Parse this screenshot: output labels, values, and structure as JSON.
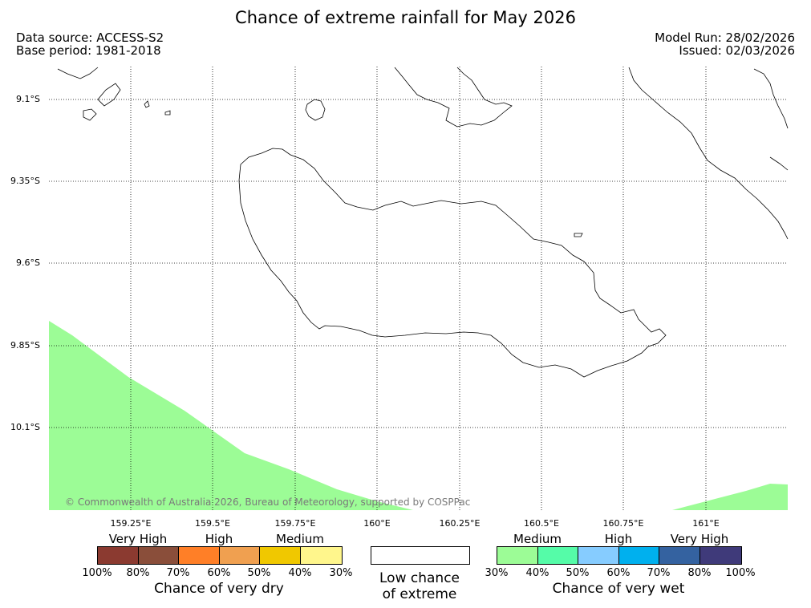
{
  "header": {
    "title": "Chance of extreme rainfall for May 2026",
    "data_source": "Data source: ACCESS-S2",
    "base_period": "Base period: 1981-2018",
    "model_run": "Model Run: 28/02/2026",
    "issued": "Issued: 02/03/2026"
  },
  "map": {
    "lat_labels": [
      "9.1°S",
      "9.35°S",
      "9.6°S",
      "9.85°S",
      "10.1°S"
    ],
    "lon_labels": [
      "159.25°E",
      "159.5°E",
      "159.75°E",
      "160°E",
      "160.25°E",
      "160.5°E",
      "160.75°E",
      "161°E"
    ],
    "copyright": "© Commonwealth of Australia 2026, Bureau of Meteorology, supported by COSPPac",
    "shaded_category": "Medium chance of very wet (30%-40%)",
    "colors": {
      "wet_medium_light": "#9cfc96",
      "coastline": "#000000",
      "grid": "#000000"
    }
  },
  "legend": {
    "dry": {
      "categories": [
        "Very High",
        "High",
        "Medium"
      ],
      "colors": [
        "#8b3a30",
        "#8a4e3a",
        "#ff7f27",
        "#f0a050",
        "#f0c800",
        "#fff68c"
      ],
      "ticks": [
        "100%",
        "80%",
        "70%",
        "60%",
        "50%",
        "40%",
        "30%"
      ],
      "caption": "Chance of very dry"
    },
    "neutral": {
      "line1": "Low chance",
      "line2": "of extreme"
    },
    "wet": {
      "categories": [
        "Medium",
        "High",
        "Very High"
      ],
      "colors": [
        "#9cfc96",
        "#55fca8",
        "#86ccff",
        "#00b0ee",
        "#3462a0",
        "#3f3a7a"
      ],
      "ticks": [
        "30%",
        "40%",
        "50%",
        "60%",
        "70%",
        "80%",
        "100%"
      ],
      "caption": "Chance of very wet"
    }
  }
}
